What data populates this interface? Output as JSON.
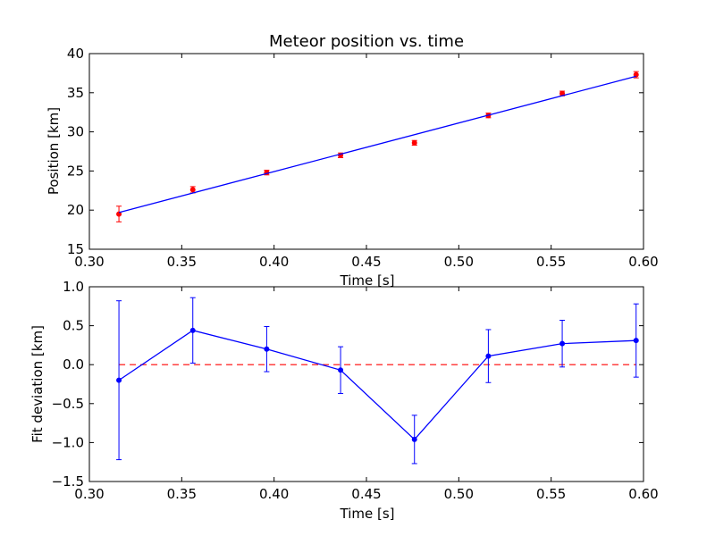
{
  "chart_data": [
    {
      "type": "scatter",
      "title": "Meteor position vs. time",
      "xlabel": "Time [s]",
      "ylabel": "Position [km]",
      "xlim": [
        0.3,
        0.6
      ],
      "ylim": [
        15,
        40
      ],
      "xticks": [
        "0.30",
        "0.35",
        "0.40",
        "0.45",
        "0.50",
        "0.55",
        "0.60"
      ],
      "yticks": [
        "15",
        "20",
        "25",
        "30",
        "35",
        "40"
      ],
      "grid": false,
      "colors": {
        "points": "#ff0000",
        "fit": "#0000ff"
      },
      "series": [
        {
          "kind": "errorbar-points",
          "x": [
            0.316,
            0.356,
            0.396,
            0.436,
            0.476,
            0.516,
            0.556,
            0.596
          ],
          "y": [
            19.5,
            22.6,
            24.8,
            27.0,
            28.6,
            32.1,
            34.9,
            37.3
          ],
          "yerr": [
            1.0,
            0.4,
            0.3,
            0.3,
            0.3,
            0.3,
            0.3,
            0.4
          ]
        },
        {
          "kind": "fit-line",
          "x": [
            0.316,
            0.596
          ],
          "y": [
            19.7,
            37.1
          ]
        }
      ]
    },
    {
      "type": "line",
      "title": "",
      "xlabel": "Time [s]",
      "ylabel": "Fit deviation [km]",
      "xlim": [
        0.3,
        0.6
      ],
      "ylim": [
        -1.5,
        1.0
      ],
      "xticks": [
        "0.30",
        "0.35",
        "0.40",
        "0.45",
        "0.50",
        "0.55",
        "0.60"
      ],
      "yticks": [
        "−1.5",
        "−1.0",
        "−0.5",
        "0.0",
        "0.5",
        "1.0"
      ],
      "grid": false,
      "colors": {
        "line": "#0000ff",
        "zero": "#ff0000"
      },
      "reference_line": {
        "y": 0.0,
        "style": "dashed"
      },
      "series": [
        {
          "kind": "errorbar-line",
          "x": [
            0.316,
            0.356,
            0.396,
            0.436,
            0.476,
            0.516,
            0.556,
            0.596
          ],
          "y": [
            -0.2,
            0.44,
            0.2,
            -0.07,
            -0.96,
            0.11,
            0.27,
            0.31
          ],
          "yerr": [
            1.02,
            0.42,
            0.29,
            0.3,
            0.31,
            0.34,
            0.3,
            0.47
          ]
        }
      ]
    }
  ]
}
